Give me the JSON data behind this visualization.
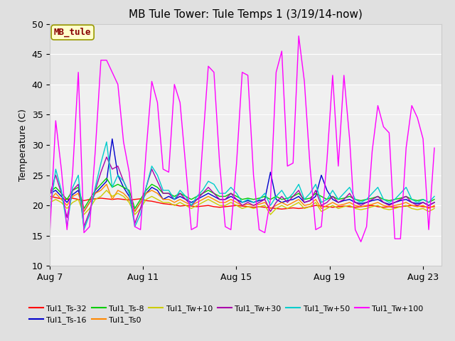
{
  "title": "MB Tule Tower: Tule Temps 1 (3/19/14-now)",
  "ylabel": "Temperature (C)",
  "ylim": [
    10,
    50
  ],
  "yticks": [
    10,
    15,
    20,
    25,
    30,
    35,
    40,
    45,
    50
  ],
  "xlim": [
    0,
    17
  ],
  "xtick_labels": [
    "Aug 7",
    "Aug 11",
    "Aug 15",
    "Aug 19",
    "Aug 23"
  ],
  "xtick_positions": [
    0,
    4,
    8,
    12,
    16
  ],
  "fig_bg_color": "#e0e0e0",
  "plot_bg_color": "#f0f0f0",
  "band_color": "#e8e8e8",
  "grid_color": "#ffffff",
  "annotation_text": "MB_tule",
  "annotation_fg": "#880000",
  "annotation_bg": "#ffffcc",
  "annotation_border": "#999900",
  "series": [
    {
      "label": "Tul1_Ts-32",
      "color": "#ff0000",
      "data": [
        21.5,
        21.3,
        21.1,
        21.0,
        21.2,
        21.0,
        20.8,
        21.0,
        21.1,
        21.2,
        21.1,
        21.0,
        21.1,
        21.0,
        20.9,
        21.0,
        21.1,
        20.8,
        20.7,
        20.5,
        20.3,
        20.2,
        20.1,
        19.9,
        20.0,
        19.9,
        19.8,
        19.9,
        20.0,
        19.8,
        19.7,
        19.8,
        19.9,
        20.0,
        19.9,
        19.8,
        19.7,
        19.8,
        19.7,
        19.6,
        19.5,
        19.4,
        19.5,
        19.6,
        19.5,
        19.6,
        19.8,
        20.0,
        19.9,
        19.8,
        19.7,
        19.8,
        19.9,
        19.8,
        19.7,
        19.8,
        19.9,
        20.0,
        19.8,
        19.7,
        19.8,
        19.7,
        19.8,
        19.9,
        20.0,
        19.9,
        19.8,
        19.7,
        19.8
      ]
    },
    {
      "label": "Tul1_Ts-16",
      "color": "#0000cc",
      "data": [
        22.0,
        22.5,
        21.5,
        20.5,
        21.8,
        22.5,
        19.0,
        20.5,
        22.0,
        23.0,
        24.0,
        31.0,
        25.0,
        23.0,
        21.5,
        19.0,
        20.5,
        22.0,
        23.0,
        22.5,
        21.0,
        21.5,
        21.0,
        21.5,
        21.0,
        20.5,
        21.0,
        21.5,
        22.0,
        21.5,
        21.0,
        21.0,
        21.5,
        21.0,
        20.5,
        20.8,
        20.5,
        20.8,
        21.0,
        25.5,
        21.0,
        20.5,
        20.8,
        21.0,
        21.5,
        20.5,
        20.8,
        21.5,
        25.0,
        22.5,
        21.0,
        20.5,
        20.8,
        21.0,
        20.5,
        20.3,
        20.5,
        20.8,
        21.0,
        20.5,
        20.2,
        20.5,
        20.8,
        21.0,
        20.5,
        20.3,
        20.5,
        20.0,
        20.5
      ]
    },
    {
      "label": "Tul1_Ts-8",
      "color": "#00cc00",
      "data": [
        22.2,
        23.0,
        22.0,
        21.0,
        22.5,
        23.0,
        19.5,
        21.0,
        22.5,
        23.5,
        24.5,
        23.0,
        23.5,
        23.0,
        22.5,
        19.5,
        21.0,
        22.5,
        23.5,
        23.0,
        22.0,
        22.0,
        21.5,
        22.0,
        21.5,
        21.0,
        21.5,
        22.0,
        22.5,
        22.0,
        21.5,
        21.5,
        22.0,
        21.5,
        21.0,
        21.2,
        21.0,
        21.2,
        21.5,
        21.0,
        21.5,
        21.0,
        21.2,
        21.5,
        22.0,
        21.0,
        21.2,
        22.0,
        21.5,
        21.0,
        21.5,
        21.0,
        21.2,
        21.5,
        21.0,
        20.8,
        21.0,
        21.2,
        21.5,
        21.0,
        20.8,
        21.0,
        21.2,
        21.5,
        21.0,
        20.8,
        21.0,
        20.5,
        21.0
      ]
    },
    {
      "label": "Tul1_Ts0",
      "color": "#ff8800",
      "data": [
        21.0,
        22.0,
        21.0,
        20.0,
        21.5,
        22.0,
        19.0,
        20.5,
        22.0,
        22.5,
        23.5,
        21.0,
        22.5,
        22.0,
        21.0,
        19.0,
        20.5,
        22.0,
        22.5,
        22.0,
        21.0,
        21.0,
        20.5,
        21.0,
        20.5,
        20.0,
        20.5,
        21.0,
        21.5,
        21.0,
        20.5,
        20.5,
        21.0,
        20.5,
        20.0,
        20.2,
        20.0,
        20.2,
        20.5,
        19.5,
        20.0,
        20.5,
        20.0,
        20.5,
        21.0,
        20.0,
        20.2,
        21.0,
        19.5,
        20.0,
        20.5,
        20.0,
        20.2,
        20.5,
        20.0,
        19.8,
        20.0,
        20.2,
        20.5,
        20.0,
        19.8,
        20.0,
        20.2,
        20.5,
        20.0,
        19.8,
        20.0,
        19.5,
        20.0
      ]
    },
    {
      "label": "Tul1_Tw+10",
      "color": "#cccc00",
      "data": [
        20.5,
        21.0,
        20.5,
        19.5,
        20.5,
        21.0,
        18.5,
        19.5,
        21.0,
        21.5,
        22.5,
        21.5,
        22.0,
        21.5,
        20.5,
        18.5,
        19.5,
        21.0,
        21.5,
        21.0,
        20.5,
        20.5,
        20.0,
        20.5,
        20.0,
        19.5,
        20.0,
        20.5,
        21.0,
        20.5,
        20.0,
        20.0,
        20.5,
        20.0,
        19.5,
        19.8,
        19.5,
        19.8,
        20.0,
        18.5,
        19.5,
        20.0,
        19.5,
        20.0,
        20.5,
        19.5,
        19.8,
        20.5,
        19.0,
        19.5,
        20.0,
        19.5,
        19.8,
        20.0,
        19.5,
        19.3,
        19.5,
        19.8,
        20.0,
        19.5,
        19.3,
        19.5,
        19.8,
        20.0,
        19.5,
        19.3,
        19.5,
        19.0,
        19.5
      ]
    },
    {
      "label": "Tul1_Tw+30",
      "color": "#aa00aa",
      "data": [
        22.0,
        25.0,
        22.0,
        18.0,
        22.5,
        23.5,
        16.5,
        19.0,
        22.5,
        25.5,
        28.0,
        26.0,
        26.5,
        24.0,
        22.0,
        17.0,
        19.5,
        23.0,
        26.0,
        24.0,
        22.0,
        22.0,
        21.0,
        22.0,
        21.0,
        20.0,
        21.0,
        22.0,
        23.0,
        22.0,
        21.0,
        21.0,
        22.0,
        21.0,
        20.0,
        20.5,
        20.0,
        20.5,
        21.0,
        19.0,
        20.5,
        21.5,
        20.5,
        21.5,
        22.5,
        20.5,
        20.8,
        22.5,
        20.0,
        20.5,
        21.5,
        20.5,
        21.0,
        22.0,
        20.5,
        20.0,
        20.5,
        21.0,
        21.5,
        20.5,
        20.0,
        20.5,
        21.0,
        21.5,
        20.5,
        20.0,
        20.5,
        20.0,
        20.5
      ]
    },
    {
      "label": "Tul1_Tw+50",
      "color": "#00cccc",
      "data": [
        19.0,
        26.0,
        22.5,
        16.5,
        23.0,
        25.0,
        16.0,
        18.5,
        23.0,
        27.0,
        30.5,
        23.0,
        25.0,
        24.0,
        22.0,
        16.5,
        18.5,
        23.0,
        26.5,
        25.0,
        22.5,
        22.5,
        21.0,
        22.5,
        21.5,
        20.0,
        21.5,
        22.5,
        24.0,
        23.5,
        22.0,
        22.0,
        23.0,
        22.0,
        20.5,
        21.0,
        20.5,
        21.0,
        22.0,
        20.0,
        21.5,
        22.5,
        21.0,
        22.0,
        23.5,
        21.0,
        22.0,
        23.5,
        20.5,
        21.0,
        22.5,
        21.0,
        22.0,
        23.0,
        21.0,
        20.5,
        21.0,
        22.0,
        23.0,
        21.0,
        20.5,
        21.0,
        22.0,
        23.0,
        21.0,
        20.5,
        21.0,
        20.5,
        21.5
      ]
    },
    {
      "label": "Tul1_Tw+100",
      "color": "#ff00ff",
      "data": [
        16.0,
        34.0,
        26.0,
        16.0,
        25.5,
        42.0,
        15.5,
        16.5,
        29.0,
        44.0,
        44.0,
        42.0,
        40.0,
        30.5,
        25.5,
        16.5,
        16.0,
        29.0,
        40.5,
        37.0,
        26.0,
        25.5,
        40.0,
        37.0,
        26.5,
        16.0,
        16.5,
        30.0,
        43.0,
        42.0,
        27.0,
        16.5,
        16.0,
        27.0,
        42.0,
        41.5,
        25.0,
        16.0,
        15.5,
        21.0,
        42.0,
        45.5,
        26.5,
        27.0,
        48.0,
        40.5,
        26.5,
        16.0,
        16.5,
        27.5,
        41.5,
        26.5,
        41.5,
        31.0,
        16.0,
        14.0,
        16.5,
        29.0,
        36.5,
        33.0,
        32.0,
        14.5,
        14.5,
        29.5,
        36.5,
        34.5,
        31.0,
        16.0,
        29.5
      ]
    }
  ]
}
